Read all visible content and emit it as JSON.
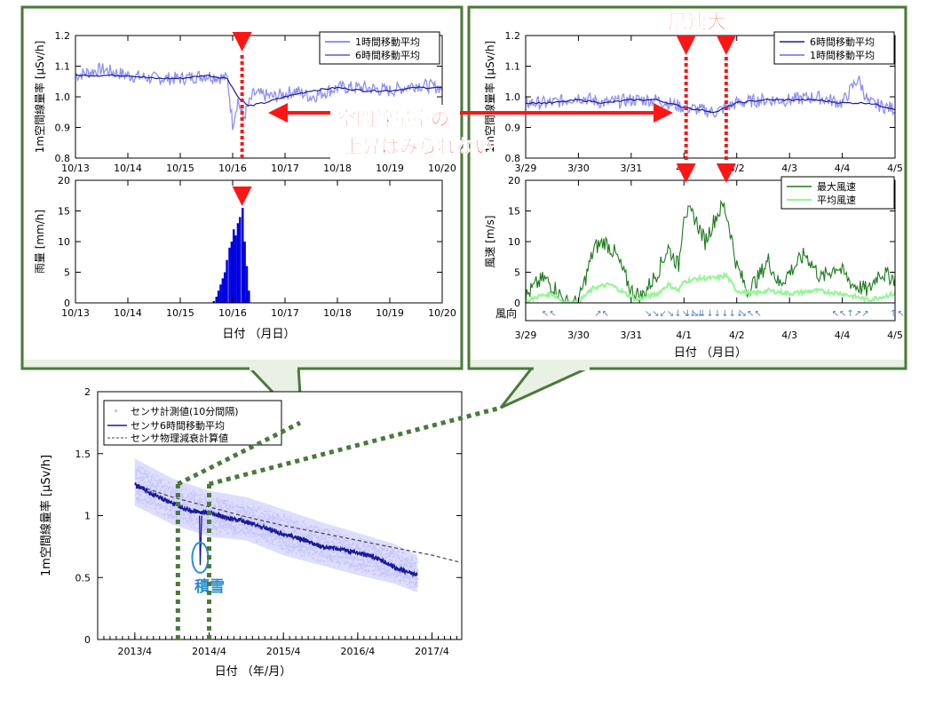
{
  "colors": {
    "panel_border": "#4a7a3a",
    "panel_fill": "#e9f0e4",
    "series_light": "#8f8ff5",
    "series_dark": "#1a1a9a",
    "rain": "#0000e0",
    "wind_max": "#1d7a1d",
    "wind_avg": "#98f598",
    "red": "#ff1515",
    "snow": "#2a8fd0",
    "cloud": "#c6c6fb",
    "decay": "#444444"
  },
  "annotations": {
    "no_rise_line1": "空間線量率の",
    "no_rise_line2": "上昇はみられない",
    "wind_strong": "風速大",
    "snow": "積雪"
  },
  "left_panel": {
    "dose_chart": {
      "ylabel": "1m空間線量率 [μSv/h]",
      "ylim": [
        0.8,
        1.2
      ],
      "yticks": [
        "0.8",
        "0.9",
        "1.0",
        "1.1",
        "1.2"
      ],
      "xticks": [
        "10/13",
        "10/14",
        "10/15",
        "10/16",
        "10/17",
        "10/18",
        "10/19",
        "10/20"
      ],
      "legend": [
        "1時間移動平均",
        "6時間移動平均"
      ]
    },
    "rain_chart": {
      "ylabel": "雨量 [mm/h]",
      "ylim": [
        0,
        20
      ],
      "yticks": [
        "0",
        "5",
        "10",
        "15",
        "20"
      ],
      "xticks": [
        "10/13",
        "10/14",
        "10/15",
        "10/16",
        "10/17",
        "10/18",
        "10/19",
        "10/20"
      ],
      "xlabel": "日付 （月日）"
    }
  },
  "right_panel": {
    "dose_chart": {
      "ylabel": "1m空間線量率 [μSv/h]",
      "ylim": [
        0.8,
        1.2
      ],
      "yticks": [
        "0.8",
        "0.9",
        "1.0",
        "1.1",
        "1.2"
      ],
      "xticks": [
        "3/29",
        "3/30",
        "3/31",
        "4/1",
        "4/2",
        "4/3",
        "4/4",
        "4/5"
      ],
      "legend": [
        "6時間移動平均",
        "1時間移動平均"
      ]
    },
    "wind_chart": {
      "ylabel": "風速 [m/s]",
      "ylim": [
        0,
        20
      ],
      "yticks": [
        "0",
        "5",
        "10",
        "15",
        "20"
      ],
      "xticks": [
        "3/29",
        "3/30",
        "3/31",
        "4/1",
        "4/2",
        "4/3",
        "4/4",
        "4/5"
      ],
      "legend": [
        "最大風速",
        "平均風速"
      ],
      "direction_label": "風向",
      "xlabel": "日付 （月日）",
      "direction_groups": [
        {
          "day": 0.3,
          "arrows": "↖↖"
        },
        {
          "day": 1.3,
          "arrows": "↗↖"
        },
        {
          "day": 2.25,
          "arrows": "↘↘↙↘↓↘↓↓"
        },
        {
          "day": 3.0,
          "arrows": "↓↘↓↓↓↓↓↓"
        },
        {
          "day": 4.05,
          "arrows": "↘↖↖"
        },
        {
          "day": 5.8,
          "arrows": "↖↖↑↗↗"
        },
        {
          "day": 6.9,
          "arrows": "↑↖"
        }
      ]
    }
  },
  "chart_data": [
    {
      "type": "line",
      "title": "",
      "xlabel": "日付 （月日）",
      "ylabel": "1m空間線量率 [μSv/h]",
      "x_range": [
        "10/13",
        "10/20"
      ],
      "ylim": [
        0.8,
        1.2
      ],
      "series": [
        {
          "name": "1時間移動平均",
          "x": [
            0,
            0.5,
            1,
            1.5,
            2,
            2.5,
            2.9,
            3.0,
            3.1,
            3.2,
            3.4,
            3.8,
            4.2,
            4.5,
            5,
            5.5,
            6,
            6.5,
            7
          ],
          "values": [
            1.07,
            1.09,
            1.07,
            1.06,
            1.06,
            1.07,
            1.06,
            0.91,
            0.99,
            0.93,
            1.01,
            1.0,
            1.02,
            1.0,
            1.03,
            1.03,
            1.02,
            1.04,
            1.03
          ]
        },
        {
          "name": "6時間移動平均",
          "x": [
            0,
            0.5,
            1,
            1.5,
            2,
            2.5,
            2.9,
            3.1,
            3.3,
            3.6,
            4,
            4.5,
            5,
            5.5,
            6,
            6.5,
            7
          ],
          "values": [
            1.07,
            1.07,
            1.07,
            1.06,
            1.06,
            1.07,
            1.06,
            1.0,
            0.97,
            0.98,
            1.0,
            1.02,
            1.03,
            1.02,
            1.02,
            1.03,
            1.03
          ]
        }
      ]
    },
    {
      "type": "bar",
      "title": "",
      "xlabel": "日付 （月日）",
      "ylabel": "雨量 [mm/h]",
      "x_range": [
        "10/13",
        "10/20"
      ],
      "ylim": [
        0,
        20
      ],
      "x": [
        2.62,
        2.67,
        2.71,
        2.75,
        2.79,
        2.83,
        2.87,
        2.92,
        2.96,
        3.0,
        3.04,
        3.08,
        3.12,
        3.17,
        3.21,
        3.25,
        3.29
      ],
      "values": [
        0.3,
        1,
        2,
        3,
        4,
        5,
        7,
        9,
        10,
        12,
        11,
        13,
        14,
        15.5,
        10,
        6,
        2
      ]
    },
    {
      "type": "line",
      "title": "",
      "xlabel": "日付 （月日）",
      "ylabel": "1m空間線量率 [μSv/h]",
      "x_range": [
        "3/29",
        "4/5"
      ],
      "ylim": [
        0.8,
        1.2
      ],
      "series": [
        {
          "name": "6時間移動平均",
          "x": [
            0,
            0.5,
            1,
            1.5,
            2,
            2.5,
            2.9,
            3.2,
            3.6,
            4.0,
            4.5,
            5,
            5.5,
            6,
            6.5,
            7
          ],
          "values": [
            0.98,
            0.98,
            0.99,
            0.98,
            0.99,
            0.99,
            0.97,
            0.96,
            0.95,
            0.98,
            0.99,
            0.99,
            0.99,
            0.98,
            0.98,
            0.96
          ]
        },
        {
          "name": "1時間移動平均",
          "x": [
            0,
            0.5,
            1,
            1.5,
            2,
            2.5,
            2.9,
            3.2,
            3.6,
            4.0,
            4.5,
            5,
            5.5,
            6,
            6.3,
            6.5,
            7
          ],
          "values": [
            0.98,
            0.98,
            1.0,
            0.98,
            0.99,
            0.99,
            0.97,
            0.96,
            0.95,
            0.98,
            0.99,
            0.99,
            1.0,
            0.98,
            1.06,
            0.98,
            0.96
          ]
        }
      ]
    },
    {
      "type": "line",
      "title": "",
      "xlabel": "日付 （月日）",
      "ylabel": "風速 [m/s]",
      "x_range": [
        "3/29",
        "4/5"
      ],
      "ylim": [
        0,
        20
      ],
      "series": [
        {
          "name": "最大風速",
          "x": [
            0,
            0.2,
            0.35,
            0.6,
            0.75,
            1.0,
            1.1,
            1.3,
            1.5,
            1.7,
            1.9,
            2.0,
            2.2,
            2.5,
            2.7,
            2.9,
            3.0,
            3.2,
            3.4,
            3.6,
            3.75,
            3.85,
            4.0,
            4.2,
            4.4,
            4.6,
            4.8,
            5.0,
            5.3,
            5.6,
            5.9,
            6.2,
            6.5,
            6.7,
            7.0
          ],
          "values": [
            1,
            3,
            4,
            2,
            0,
            0,
            3,
            9,
            10,
            8,
            4,
            2,
            1,
            5,
            9,
            6,
            15,
            14,
            10,
            14,
            16,
            13,
            6,
            2,
            4,
            7,
            3,
            5,
            8,
            4,
            6,
            3,
            2,
            5,
            4
          ]
        },
        {
          "name": "平均風速",
          "x": [
            0,
            0.2,
            0.5,
            0.75,
            1.0,
            1.1,
            1.3,
            1.6,
            1.9,
            2.1,
            2.5,
            2.7,
            2.9,
            3.0,
            3.3,
            3.6,
            3.8,
            4.0,
            4.3,
            4.6,
            5.0,
            5.5,
            6.0,
            6.5,
            7.0
          ],
          "values": [
            0,
            1,
            1.5,
            0,
            0,
            1,
            2.5,
            3,
            1.5,
            0.5,
            1.5,
            3,
            2,
            3.5,
            4,
            4,
            4.5,
            2,
            1.5,
            2,
            1.5,
            2,
            1.5,
            0.5,
            1.5
          ]
        }
      ]
    },
    {
      "type": "scatter",
      "title": "",
      "xlabel": "日付 （年/月）",
      "ylabel": "1m空間線量率 [μSv/h]",
      "xticks": [
        "2013/4",
        "2014/4",
        "2015/4",
        "2016/4",
        "2017/4"
      ],
      "yticks": [
        "0",
        "0.5",
        "1",
        "1.5",
        "2"
      ],
      "ylim": [
        0,
        2
      ],
      "xlim_years": [
        2012.75,
        2017.65
      ],
      "legend": [
        "センサ計測値(10分間隔)",
        "センサ6時間移動平均",
        "センサ物理減衰計算値"
      ],
      "series": [
        {
          "name": "センサ計測値(10分間隔)",
          "t": [
            2013.25,
            2013.75,
            2014.25,
            2014.75,
            2015.25,
            2015.75,
            2016.25,
            2016.75,
            2017.05
          ],
          "values_low": [
            1.08,
            0.93,
            0.83,
            0.8,
            0.68,
            0.6,
            0.52,
            0.45,
            0.38
          ],
          "values_high": [
            1.46,
            1.3,
            1.2,
            1.15,
            1.05,
            0.95,
            0.86,
            0.77,
            0.68
          ]
        },
        {
          "name": "センサ6時間移動平均",
          "t": [
            2013.25,
            2013.5,
            2013.75,
            2014.0,
            2014.25,
            2014.5,
            2014.75,
            2015.0,
            2015.25,
            2015.5,
            2015.75,
            2016.0,
            2016.25,
            2016.5,
            2016.75,
            2017.05
          ],
          "values": [
            1.25,
            1.17,
            1.1,
            1.04,
            1.02,
            0.98,
            0.95,
            0.9,
            0.85,
            0.81,
            0.75,
            0.73,
            0.7,
            0.66,
            0.58,
            0.52
          ]
        },
        {
          "name": "センサ物理減衰計算値",
          "t": [
            2013.25,
            2013.75,
            2014.25,
            2014.75,
            2015.25,
            2015.75,
            2016.25,
            2016.75,
            2017.25,
            2017.65
          ],
          "values": [
            1.25,
            1.15,
            1.07,
            0.99,
            0.92,
            0.86,
            0.8,
            0.74,
            0.68,
            0.62
          ]
        }
      ]
    }
  ]
}
